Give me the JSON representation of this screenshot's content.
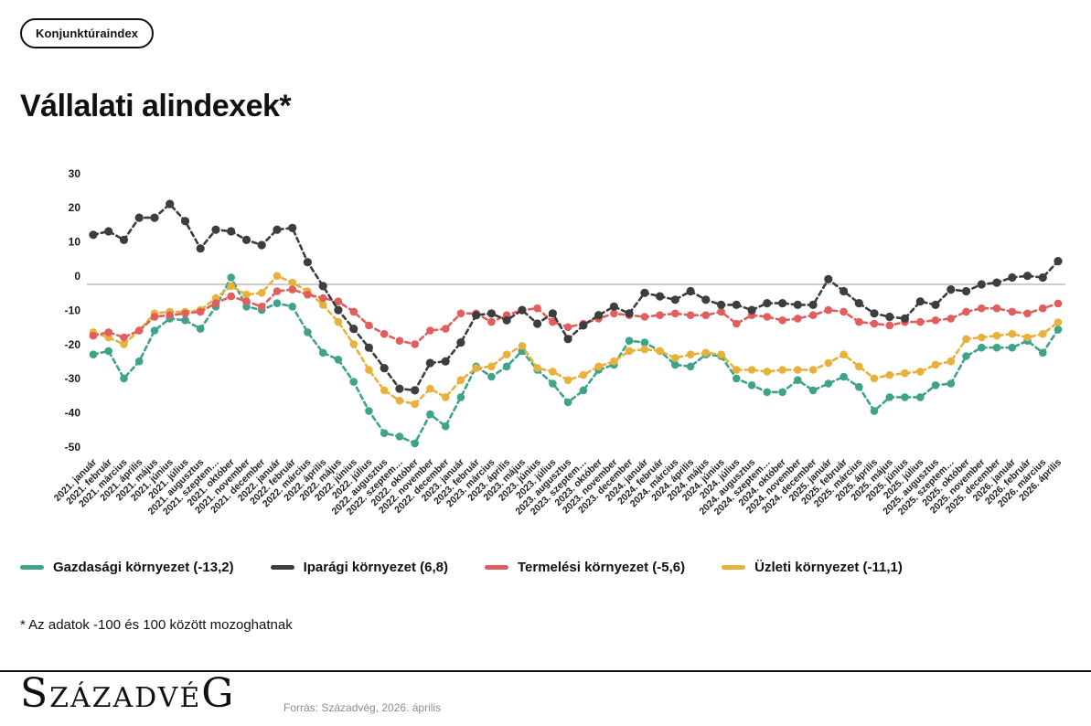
{
  "badge": {
    "label": "Konjunktúraindex"
  },
  "header": {
    "title": "Vállalati alindexek*"
  },
  "footnote": "* Az adatok -100 és 100 között mozoghatnak",
  "footer": {
    "wordmark": {
      "first": "S",
      "middle": "ZÁZADVÉ",
      "last": "G"
    },
    "source": "Forrás: Századvég, 2026. április"
  },
  "chart_data": {
    "type": "line",
    "title": "Vállalati alindexek*",
    "xlabel": "",
    "ylabel": "",
    "ylim": [
      -55,
      33
    ],
    "yticks": [
      30,
      20,
      10,
      0,
      -10,
      -20,
      -30,
      -40,
      -50
    ],
    "grid": "zero-line-only",
    "legend_position": "bottom",
    "marker": "dot",
    "line_style": "dashed",
    "x_categories": [
      "2021. január",
      "2021. február",
      "2021. március",
      "2021. április",
      "2021. május",
      "2021. június",
      "2021. július",
      "2021. augusztus",
      "2021. szeptem…",
      "2021. október",
      "2021. november",
      "2021. december",
      "2022. január",
      "2022. február",
      "2022. március",
      "2022. április",
      "2022. május",
      "2022. június",
      "2022. július",
      "2022. augusztus",
      "2022. szeptem…",
      "2022. október",
      "2022. november",
      "2022. december",
      "2023. január",
      "2023. február",
      "2023. március",
      "2023. április",
      "2023. május",
      "2023. június",
      "2023. július",
      "2023. augusztus",
      "2023. szeptem…",
      "2023. október",
      "2023. november",
      "2023. december",
      "2024. január",
      "2024. február",
      "2024. március",
      "2024. április",
      "2024. május",
      "2024. június",
      "2024. július",
      "2024. augusztus",
      "2024. szeptem…",
      "2024. október",
      "2024. november",
      "2024. december",
      "2025. január",
      "2025. február",
      "2025. március",
      "2025. április",
      "2025. május",
      "2025. június",
      "2025. július",
      "2025. augusztus",
      "2025. szeptem…",
      "2025. október",
      "2025. november",
      "2025. december",
      "2026. január",
      "2026. február",
      "2026. március",
      "2026. április"
    ],
    "series": [
      {
        "name": "Gazdasági környezet (-13,2)",
        "color": "#3FA38A",
        "final_value": -13.2,
        "values": [
          -20.5,
          -19.5,
          -27.5,
          -22.5,
          -13.5,
          -10,
          -10.5,
          -13,
          -6.5,
          2,
          -6.5,
          -7.5,
          -5.5,
          -6.5,
          -14,
          -20,
          -22,
          -28.5,
          -37,
          -43.5,
          -44.5,
          -46.5,
          -38,
          -41.5,
          -33,
          -24,
          -27,
          -24,
          -19.5,
          -25,
          -29,
          -34.5,
          -31,
          -25,
          -23.5,
          -16.5,
          -17,
          -19.5,
          -23.5,
          -24,
          -20.5,
          -21,
          -27.5,
          -29.5,
          -31.5,
          -31.5,
          -28,
          -31,
          -29,
          -27,
          -30,
          -37,
          -33,
          -33,
          -33,
          -29.5,
          -29,
          -21,
          -18.5,
          -18.5,
          -18.5,
          -16.5,
          -20,
          -13.2
        ]
      },
      {
        "name": "Iparági környezet (6,8)",
        "color": "#3D3D3D",
        "final_value": 6.8,
        "values": [
          14.5,
          15.5,
          13,
          19.5,
          19.5,
          23.5,
          18.5,
          10.5,
          16,
          15.5,
          13,
          11.5,
          16,
          16.5,
          6.5,
          -0.5,
          -7.5,
          -13,
          -18.5,
          -24.5,
          -30.5,
          -31,
          -23,
          -22.5,
          -17,
          -9,
          -8.5,
          -10.5,
          -7.5,
          -11.5,
          -8.5,
          -16,
          -12,
          -9,
          -6.5,
          -8.5,
          -2.5,
          -3.5,
          -4.5,
          -2,
          -4.5,
          -6,
          -6,
          -7.5,
          -5.5,
          -5.5,
          -6,
          -6,
          1.5,
          -2,
          -5.5,
          -8.5,
          -9.5,
          -10,
          -5,
          -6,
          -1.5,
          -2,
          0,
          0.5,
          2,
          2.5,
          2,
          6.8
        ]
      },
      {
        "name": "Termelési környezet (-5,6)",
        "color": "#E05E5E",
        "final_value": -5.6,
        "values": [
          -15,
          -14,
          -15.5,
          -13.5,
          -9.5,
          -9,
          -8.5,
          -8,
          -5.5,
          -3.5,
          -5,
          -6.5,
          -2,
          -1.5,
          -3,
          -4,
          -5,
          -8,
          -12,
          -14.5,
          -16.5,
          -17.5,
          -13.5,
          -13,
          -8.5,
          -8.5,
          -11,
          -9,
          -7.5,
          -7,
          -11,
          -12.5,
          -11.5,
          -10,
          -8.5,
          -9,
          -9.5,
          -9,
          -8.5,
          -9,
          -9,
          -8,
          -11.5,
          -9,
          -9.5,
          -10.5,
          -10,
          -9,
          -7.5,
          -8,
          -11,
          -11.5,
          -12,
          -11,
          -11,
          -10.5,
          -10,
          -8,
          -7,
          -7,
          -8,
          -8.5,
          -7,
          -5.6
        ]
      },
      {
        "name": "Üzleti környezet (-11,1)",
        "color": "#E7B13B",
        "final_value": -11.1,
        "values": [
          -14,
          -15.5,
          -17.5,
          -13.5,
          -8.5,
          -8,
          -8,
          -7.5,
          -4,
          -0.5,
          -3,
          -2.5,
          2.5,
          0.5,
          -2,
          -6,
          -11,
          -17.5,
          -25,
          -31,
          -34,
          -35,
          -30.5,
          -33,
          -28,
          -24.5,
          -24,
          -20.5,
          -18,
          -24.5,
          -25.5,
          -28,
          -26.5,
          -24,
          -22.5,
          -19.5,
          -19,
          -19.5,
          -21.5,
          -20.5,
          -20,
          -20.5,
          -25,
          -25,
          -25.5,
          -25,
          -25,
          -25,
          -23,
          -20.5,
          -24,
          -27.5,
          -26.5,
          -26,
          -25.5,
          -23.5,
          -22.5,
          -16,
          -15.5,
          -15,
          -14.5,
          -15.5,
          -14.5,
          -11.1
        ]
      }
    ]
  }
}
